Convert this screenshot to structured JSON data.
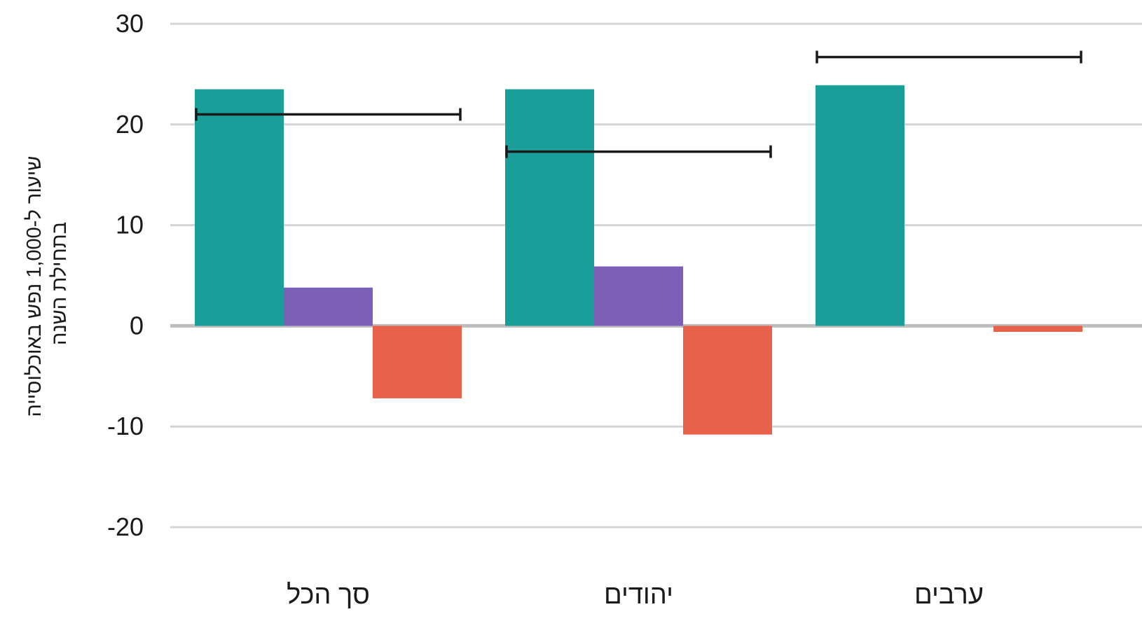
{
  "chart_data": {
    "type": "bar",
    "ylabel": [
      "שיעור ל-1,000 נפש באוכלוסייה",
      "בתחילת השנה"
    ],
    "ylim": [
      -20,
      30
    ],
    "yticks": [
      "30",
      "20",
      "10",
      "0",
      "-10",
      "-20"
    ],
    "grid": true,
    "categories": [
      "סך הכל",
      "יהודים",
      "ערבים"
    ],
    "series": [
      {
        "color": "#1a9e9a",
        "values": [
          23.5,
          23.5,
          23.9
        ]
      },
      {
        "color": "#7c5fb8",
        "values": [
          3.8,
          5.9,
          0
        ]
      },
      {
        "color": "#e8614a",
        "values": [
          -7.2,
          -10.8,
          -0.6
        ]
      }
    ],
    "totals": [
      21.0,
      17.3,
      26.7
    ]
  }
}
